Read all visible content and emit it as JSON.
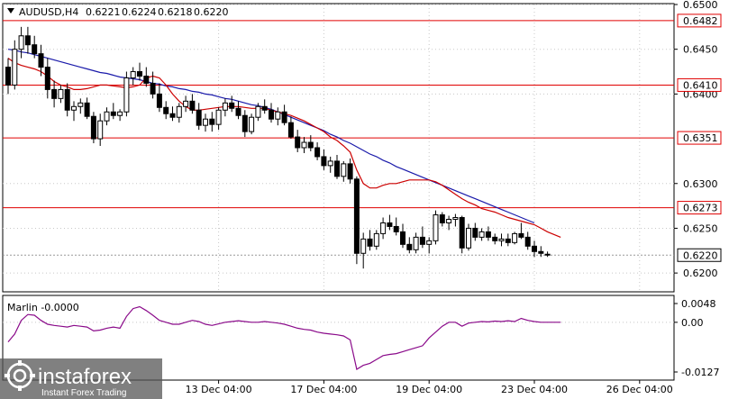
{
  "header": {
    "symbol": "AUDUSD,H4",
    "open": "0.6221",
    "high": "0.6224",
    "low": "0.6218",
    "close": "0.6220"
  },
  "indicator": {
    "label": "Marlin -0.0000",
    "ticks": [
      "0.0048",
      "0.00",
      "-0.0127"
    ]
  },
  "logo": {
    "brand": "instaforex",
    "tagline": "Instant Forex Trading"
  },
  "colors": {
    "candle": "#000000",
    "ma_fast": "#cc0000",
    "ma_slow": "#1a1aaa",
    "level": "#e00000",
    "oscillator": "#8a0a8a",
    "price_tag": "#e00000"
  },
  "chart_data": {
    "type": "candlestick",
    "ylim": [
      0.618,
      0.65
    ],
    "y_ticks": [
      "0.6500",
      "0.6450",
      "0.6400",
      "0.6300",
      "0.6250",
      "0.6200"
    ],
    "x_ticks": [
      "13 Dec 04:00",
      "17 Dec 04:00",
      "19 Dec 04:00",
      "23 Dec 04:00",
      "26 Dec 04:00"
    ],
    "x_tick_bar_index": [
      32,
      48,
      64,
      80,
      96
    ],
    "levels": [
      {
        "value": 0.6482,
        "label": "0.6482"
      },
      {
        "value": 0.641,
        "label": "0.6410"
      },
      {
        "value": 0.6351,
        "label": "0.6351"
      },
      {
        "value": 0.6273,
        "label": "0.6273"
      }
    ],
    "current_price": {
      "value": 0.622,
      "label": "0.6220"
    },
    "candles": [
      [
        0.643,
        0.644,
        0.64,
        0.641
      ],
      [
        0.641,
        0.646,
        0.6405,
        0.645
      ],
      [
        0.645,
        0.6475,
        0.644,
        0.6465
      ],
      [
        0.6465,
        0.6475,
        0.6445,
        0.6455
      ],
      [
        0.6455,
        0.6465,
        0.644,
        0.6445
      ],
      [
        0.6445,
        0.6455,
        0.642,
        0.643
      ],
      [
        0.643,
        0.644,
        0.6395,
        0.6405
      ],
      [
        0.6405,
        0.6415,
        0.6385,
        0.6395
      ],
      [
        0.6395,
        0.641,
        0.639,
        0.6405
      ],
      [
        0.6405,
        0.6412,
        0.6375,
        0.6382
      ],
      [
        0.6382,
        0.6392,
        0.637,
        0.6386
      ],
      [
        0.6386,
        0.6395,
        0.6378,
        0.639
      ],
      [
        0.639,
        0.6396,
        0.6372,
        0.6375
      ],
      [
        0.6375,
        0.638,
        0.6345,
        0.635
      ],
      [
        0.635,
        0.6378,
        0.6342,
        0.637
      ],
      [
        0.637,
        0.6385,
        0.6365,
        0.638
      ],
      [
        0.638,
        0.639,
        0.6372,
        0.6376
      ],
      [
        0.6376,
        0.6383,
        0.637,
        0.638
      ],
      [
        0.638,
        0.6425,
        0.6375,
        0.6418
      ],
      [
        0.6418,
        0.643,
        0.641,
        0.6425
      ],
      [
        0.6425,
        0.6435,
        0.6415,
        0.642
      ],
      [
        0.642,
        0.643,
        0.6408,
        0.6412
      ],
      [
        0.6412,
        0.6425,
        0.6395,
        0.64
      ],
      [
        0.64,
        0.6412,
        0.638,
        0.6385
      ],
      [
        0.6385,
        0.6392,
        0.6372,
        0.6378
      ],
      [
        0.6378,
        0.6386,
        0.637,
        0.6374
      ],
      [
        0.6374,
        0.639,
        0.6368,
        0.6386
      ],
      [
        0.6386,
        0.6398,
        0.638,
        0.6392
      ],
      [
        0.6392,
        0.64,
        0.6378,
        0.6382
      ],
      [
        0.6382,
        0.639,
        0.636,
        0.6365
      ],
      [
        0.6365,
        0.6378,
        0.6358,
        0.6372
      ],
      [
        0.6372,
        0.638,
        0.6358,
        0.6366
      ],
      [
        0.6366,
        0.6385,
        0.636,
        0.6382
      ],
      [
        0.6382,
        0.6395,
        0.6375,
        0.639
      ],
      [
        0.639,
        0.6398,
        0.638,
        0.6384
      ],
      [
        0.6384,
        0.6392,
        0.6372,
        0.6376
      ],
      [
        0.6376,
        0.6382,
        0.6352,
        0.6358
      ],
      [
        0.6358,
        0.6378,
        0.6355,
        0.6374
      ],
      [
        0.6374,
        0.639,
        0.637,
        0.6386
      ],
      [
        0.6386,
        0.6394,
        0.6378,
        0.6382
      ],
      [
        0.6382,
        0.639,
        0.6368,
        0.6372
      ],
      [
        0.6372,
        0.6385,
        0.6365,
        0.638
      ],
      [
        0.638,
        0.6388,
        0.6365,
        0.6368
      ],
      [
        0.6368,
        0.6375,
        0.635,
        0.6352
      ],
      [
        0.6352,
        0.636,
        0.6335,
        0.634
      ],
      [
        0.634,
        0.6352,
        0.6334,
        0.6346
      ],
      [
        0.6346,
        0.6354,
        0.6336,
        0.634
      ],
      [
        0.634,
        0.6346,
        0.6326,
        0.633
      ],
      [
        0.633,
        0.6338,
        0.6315,
        0.632
      ],
      [
        0.632,
        0.633,
        0.6312,
        0.6325
      ],
      [
        0.6325,
        0.6332,
        0.6305,
        0.6308
      ],
      [
        0.6308,
        0.6325,
        0.6302,
        0.6322
      ],
      [
        0.6322,
        0.6328,
        0.63,
        0.6305
      ],
      [
        0.6305,
        0.6308,
        0.621,
        0.6222
      ],
      [
        0.6222,
        0.6245,
        0.6205,
        0.6238
      ],
      [
        0.6238,
        0.6248,
        0.6225,
        0.623
      ],
      [
        0.623,
        0.6248,
        0.6226,
        0.6244
      ],
      [
        0.6244,
        0.6262,
        0.6238,
        0.6256
      ],
      [
        0.6256,
        0.6265,
        0.6248,
        0.6252
      ],
      [
        0.6252,
        0.6262,
        0.6242,
        0.6246
      ],
      [
        0.6246,
        0.6255,
        0.6228,
        0.6232
      ],
      [
        0.6232,
        0.624,
        0.6222,
        0.6226
      ],
      [
        0.6226,
        0.6245,
        0.6222,
        0.624
      ],
      [
        0.624,
        0.6252,
        0.6228,
        0.6232
      ],
      [
        0.6232,
        0.624,
        0.6222,
        0.6236
      ],
      [
        0.6236,
        0.627,
        0.6232,
        0.6265
      ],
      [
        0.6265,
        0.6268,
        0.6252,
        0.6256
      ],
      [
        0.6256,
        0.6264,
        0.6248,
        0.626
      ],
      [
        0.626,
        0.6266,
        0.6252,
        0.6262
      ],
      [
        0.6262,
        0.6264,
        0.6222,
        0.6228
      ],
      [
        0.6228,
        0.6255,
        0.6225,
        0.625
      ],
      [
        0.625,
        0.6256,
        0.6236,
        0.624
      ],
      [
        0.624,
        0.625,
        0.6236,
        0.6246
      ],
      [
        0.6246,
        0.6252,
        0.6236,
        0.624
      ],
      [
        0.624,
        0.6244,
        0.6232,
        0.6236
      ],
      [
        0.6236,
        0.6244,
        0.623,
        0.6238
      ],
      [
        0.6238,
        0.6244,
        0.623,
        0.6234
      ],
      [
        0.6234,
        0.6246,
        0.6232,
        0.6244
      ],
      [
        0.6244,
        0.6256,
        0.6238,
        0.624
      ],
      [
        0.624,
        0.6246,
        0.6226,
        0.623
      ],
      [
        0.623,
        0.6236,
        0.6218,
        0.6224
      ],
      [
        0.6224,
        0.623,
        0.6218,
        0.6222
      ],
      [
        0.6221,
        0.6224,
        0.6218,
        0.622
      ]
    ],
    "ma_fast": [
      0.644,
      0.6435,
      0.6432,
      0.643,
      0.6428,
      0.6425,
      0.642,
      0.6414,
      0.641,
      0.6408,
      0.6405,
      0.6405,
      0.6406,
      0.6408,
      0.641,
      0.641,
      0.6409,
      0.6408,
      0.6407,
      0.6408,
      0.641,
      0.6418,
      0.642,
      0.6418,
      0.641,
      0.64,
      0.6392,
      0.6386,
      0.6382,
      0.6382,
      0.6383,
      0.6384,
      0.6385,
      0.6386,
      0.6386,
      0.6386,
      0.6385,
      0.6384,
      0.6384,
      0.6384,
      0.6382,
      0.638,
      0.6378,
      0.6376,
      0.6373,
      0.637,
      0.6366,
      0.6362,
      0.6358,
      0.6352,
      0.6348,
      0.6342,
      0.6335,
      0.6315,
      0.63,
      0.6295,
      0.6295,
      0.6298,
      0.63,
      0.63,
      0.6302,
      0.6304,
      0.6304,
      0.6304,
      0.6304,
      0.6302,
      0.6298,
      0.6293,
      0.6288,
      0.6283,
      0.6279,
      0.6276,
      0.6272,
      0.627,
      0.6268,
      0.6265,
      0.6262,
      0.626,
      0.6258,
      0.6256,
      0.6254,
      0.625,
      0.6246,
      0.6243,
      0.624
    ],
    "ma_slow": [
      0.645,
      0.6449,
      0.6447,
      0.6446,
      0.6444,
      0.6442,
      0.644,
      0.6438,
      0.6436,
      0.6434,
      0.6432,
      0.643,
      0.6428,
      0.6426,
      0.6424,
      0.6423,
      0.6421,
      0.6419,
      0.6418,
      0.6417,
      0.6416,
      0.6414,
      0.6412,
      0.6411,
      0.6409,
      0.6408,
      0.6406,
      0.6405,
      0.6403,
      0.6402,
      0.64,
      0.6399,
      0.6397,
      0.6395,
      0.6394,
      0.6392,
      0.639,
      0.6388,
      0.6387,
      0.6385,
      0.6383,
      0.638,
      0.6377,
      0.6374,
      0.6371,
      0.6368,
      0.6365,
      0.6362,
      0.6359,
      0.6355,
      0.6352,
      0.6348,
      0.6345,
      0.6341,
      0.6337,
      0.6333,
      0.633,
      0.6326,
      0.6323,
      0.6319,
      0.6316,
      0.6313,
      0.631,
      0.6307,
      0.6304,
      0.6301,
      0.6298,
      0.6295,
      0.6292,
      0.6289,
      0.6286,
      0.6283,
      0.628,
      0.6277,
      0.6274,
      0.6271,
      0.6268,
      0.6265,
      0.6262,
      0.6259,
      0.6256
    ],
    "oscillator": {
      "name": "Marlin",
      "ylim": [
        -0.0127,
        0.0048
      ],
      "values": [
        -0.005,
        -0.003,
        0.0005,
        0.002,
        0.0018,
        0.0005,
        -0.0005,
        -0.0008,
        -0.001,
        -0.0012,
        -0.0008,
        -0.001,
        -0.0012,
        -0.0022,
        -0.002,
        -0.0015,
        -0.0012,
        -0.0015,
        0.0015,
        0.0035,
        0.004,
        0.003,
        0.0018,
        0.0005,
        0.0,
        -0.0005,
        -0.0005,
        0.0,
        0.0005,
        0.0002,
        -0.0005,
        -0.0008,
        -0.0004,
        0.0,
        0.0002,
        0.0004,
        0.0002,
        0.0,
        0.0,
        0.0002,
        0.0,
        -0.0002,
        -0.0005,
        -0.001,
        -0.0015,
        -0.0018,
        -0.002,
        -0.0025,
        -0.0028,
        -0.003,
        -0.0032,
        -0.0035,
        -0.0045,
        -0.012,
        -0.011,
        -0.0105,
        -0.0095,
        -0.0085,
        -0.0082,
        -0.008,
        -0.0075,
        -0.007,
        -0.0065,
        -0.006,
        -0.004,
        -0.0025,
        -0.001,
        0.0,
        0.0,
        -0.001,
        -0.0002,
        0.0,
        0.0002,
        0.0001,
        0.0003,
        0.0002,
        0.0004,
        0.0002,
        0.001,
        0.0005,
        0.0002,
        0.0,
        0.0,
        0.0,
        0.0
      ]
    }
  }
}
